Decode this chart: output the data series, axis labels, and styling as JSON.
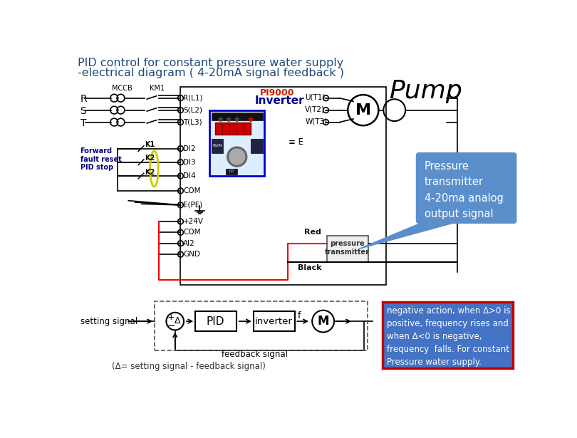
{
  "title_line1": "PID control for constant pressure water supply",
  "title_line2": "-electrical diagram ( 4-20mA signal feedback )",
  "title_color": "#1F497D",
  "title_fontsize": 11.5,
  "bg_color": "#FFFFFF",
  "pump_label": "Pump",
  "pump_label_color": "#000000",
  "pump_label_fontsize": 26,
  "pressure_box_text": "Pressure\ntransmitter\n4-20ma analog\noutput signal",
  "pressure_box_bg": "#5B8FCC",
  "pressure_box_text_color": "#FFFFFF",
  "note_box_text": "negative action, when Δ>0 is\npositive, frequency rises and\nwhen Δ<0 is negative,\nfrequency  falls. For constant\nPressure water supply.",
  "note_box_bg": "#4472C4",
  "note_box_text_color": "#FFFFFF",
  "note_box_border": "#C00000",
  "red_wire_color": "#FF0000",
  "black_wire_color": "#000000"
}
